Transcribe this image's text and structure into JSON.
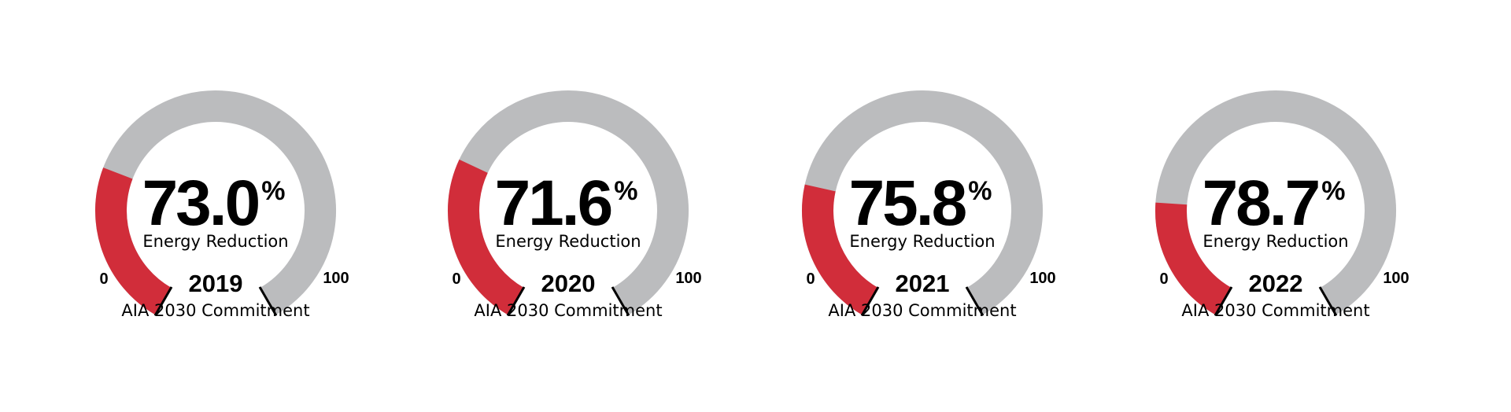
{
  "chart_data": {
    "type": "gauge",
    "range": [
      0,
      100
    ],
    "min_label": "0",
    "max_label": "100",
    "value_unit": "%",
    "value_caption": "Energy Reduction",
    "year_caption": "AIA 2030 Commitment",
    "colors": {
      "track": "#bbbcbe",
      "fill": "#d12d3a",
      "tick": "#000000",
      "text": "#000000"
    },
    "gauges": [
      {
        "year": "2019",
        "value": 73.0,
        "value_text": "73.0"
      },
      {
        "year": "2020",
        "value": 71.6,
        "value_text": "71.6"
      },
      {
        "year": "2021",
        "value": 75.8,
        "value_text": "75.8"
      },
      {
        "year": "2022",
        "value": 78.7,
        "value_text": "78.7"
      }
    ]
  }
}
